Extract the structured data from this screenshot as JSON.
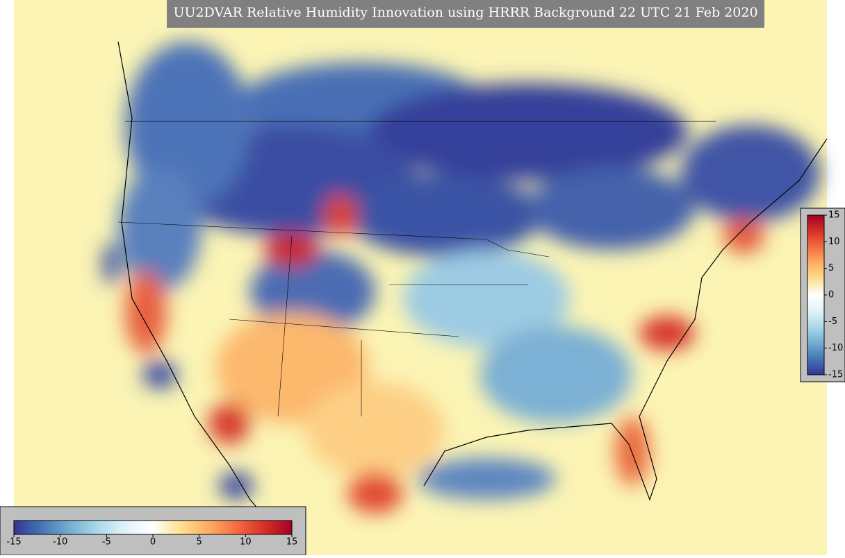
{
  "title": "UU2DVAR Relative Humidity Innovation using HRRR Background 22 UTC 21 Feb 2020",
  "colorbars": [
    {
      "orientation": "horizontal",
      "lim": [
        -15,
        15
      ],
      "ticks": [
        -15,
        -10,
        -5,
        0,
        5,
        10,
        15
      ]
    },
    {
      "orientation": "vertical",
      "lim": [
        -15,
        15
      ],
      "ticks": [
        -15,
        -10,
        -5,
        0,
        5,
        10,
        15
      ]
    }
  ],
  "colormap": [
    "#313695",
    "#4575b4",
    "#74add1",
    "#abd9e9",
    "#e0f3f8",
    "#ffffff",
    "#fee090",
    "#fdae61",
    "#f46d43",
    "#d73027",
    "#a50026"
  ]
}
